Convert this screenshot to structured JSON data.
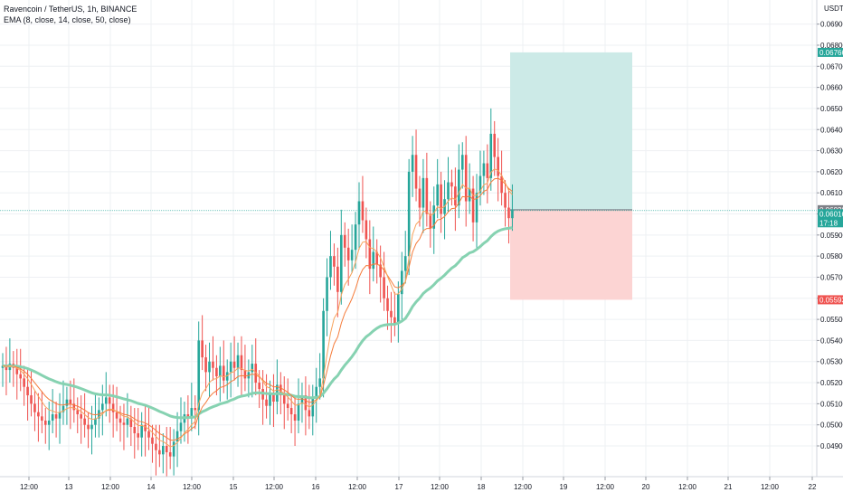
{
  "header": {
    "title": "Ravencoin / TetherUS, 1h, BINANCE",
    "indicator": "EMA (8, close, 14, close, 50, close)"
  },
  "currency": "USDT",
  "colors": {
    "up": "#26a69a",
    "down": "#ef5350",
    "ema_fast": "#f7a35c",
    "ema_mid": "#f57c3b",
    "ema_slow": "#86d2b1",
    "target_zone": "#cceae7",
    "stop_zone": "#fcd4d3",
    "grid": "#eef0f3",
    "target_tag": "#26a69a",
    "stop_tag": "#ef5350",
    "entry_tag": "#7e8087",
    "price_tag": "#26a69a"
  },
  "tags": {
    "target": "0.06766",
    "entry": "0.06020",
    "last": "0.06016",
    "countdown": "17:18",
    "stop": "0.05593"
  },
  "chart_data": {
    "type": "candlestick",
    "title": "Ravencoin / TetherUS, 1h, BINANCE",
    "ylim": [
      0.0484,
      0.0692
    ],
    "y_ticks": [
      "0.06900",
      "0.06800",
      "0.06700",
      "0.06600",
      "0.06500",
      "0.06400",
      "0.06300",
      "0.06200",
      "0.06100",
      "0.06000",
      "0.05900",
      "0.05800",
      "0.05700",
      "0.05600",
      "0.05500",
      "0.05400",
      "0.05300",
      "0.05200",
      "0.05100",
      "0.05000",
      "0.04900"
    ],
    "x_ticks": [
      "12:00",
      "13",
      "12:00",
      "14",
      "12:00",
      "15",
      "12:00",
      "16",
      "12:00",
      "17",
      "12:00",
      "18",
      "12:00",
      "19",
      "12:00",
      "20",
      "12:00",
      "21",
      "12:00",
      "22"
    ],
    "grid": true,
    "series": [
      {
        "name": "price",
        "close": [
          0.0528,
          0.0526,
          0.0529,
          0.0527,
          0.0524,
          0.0522,
          0.0518,
          0.0514,
          0.051,
          0.0506,
          0.0504,
          0.0502,
          0.05,
          0.0502,
          0.0505,
          0.0503,
          0.0506,
          0.0509,
          0.0512,
          0.051,
          0.0507,
          0.0505,
          0.0503,
          0.05,
          0.0498,
          0.05,
          0.0503,
          0.0507,
          0.051,
          0.0513,
          0.051,
          0.0506,
          0.0503,
          0.0501,
          0.05,
          0.0503,
          0.0499,
          0.0496,
          0.0494,
          0.05,
          0.0497,
          0.0494,
          0.0491,
          0.0488,
          0.0486,
          0.049,
          0.0487,
          0.0485,
          0.0492,
          0.0497,
          0.0501,
          0.0505,
          0.0503,
          0.0508,
          0.0507,
          0.054,
          0.0532,
          0.0525,
          0.053,
          0.0527,
          0.0523,
          0.0528,
          0.0521,
          0.0525,
          0.053,
          0.0527,
          0.0533,
          0.0526,
          0.0522,
          0.0525,
          0.0529,
          0.052,
          0.0517,
          0.0512,
          0.0509,
          0.0515,
          0.0511,
          0.0519,
          0.0514,
          0.051,
          0.0508,
          0.0505,
          0.0502,
          0.051,
          0.0514,
          0.0507,
          0.0504,
          0.0513,
          0.0518,
          0.0522,
          0.0554,
          0.057,
          0.058,
          0.0575,
          0.0563,
          0.059,
          0.0584,
          0.0578,
          0.0583,
          0.0595,
          0.0606,
          0.0597,
          0.0588,
          0.0574,
          0.0582,
          0.0576,
          0.057,
          0.056,
          0.0554,
          0.0551,
          0.0548,
          0.0562,
          0.0573,
          0.058,
          0.062,
          0.0628,
          0.0612,
          0.0603,
          0.0617,
          0.06,
          0.0593,
          0.0604,
          0.0614,
          0.06,
          0.0607,
          0.0615,
          0.0613,
          0.0604,
          0.0621,
          0.0628,
          0.0606,
          0.0612,
          0.0596,
          0.061,
          0.0618,
          0.0624,
          0.0617,
          0.0638,
          0.0627,
          0.0618,
          0.061,
          0.0603,
          0.0598,
          0.0602
        ],
        "open": [
          0.0527,
          0.0528,
          0.0526,
          0.0529,
          0.0527,
          0.0524,
          0.0522,
          0.0518,
          0.0514,
          0.051,
          0.0506,
          0.0504,
          0.0502,
          0.05,
          0.0502,
          0.0505,
          0.0503,
          0.0506,
          0.0509,
          0.0512,
          0.051,
          0.0507,
          0.0505,
          0.0503,
          0.05,
          0.0498,
          0.05,
          0.0503,
          0.0507,
          0.051,
          0.0513,
          0.051,
          0.0506,
          0.0503,
          0.0501,
          0.05,
          0.0503,
          0.0499,
          0.0496,
          0.0494,
          0.05,
          0.0497,
          0.0494,
          0.0491,
          0.0488,
          0.0486,
          0.049,
          0.0487,
          0.0485,
          0.0492,
          0.0497,
          0.0501,
          0.0505,
          0.0503,
          0.0508,
          0.0507,
          0.054,
          0.0532,
          0.0525,
          0.053,
          0.0527,
          0.0523,
          0.0528,
          0.0521,
          0.0525,
          0.053,
          0.0527,
          0.0533,
          0.0526,
          0.0522,
          0.0525,
          0.0529,
          0.052,
          0.0517,
          0.0512,
          0.0509,
          0.0515,
          0.0511,
          0.0519,
          0.0514,
          0.051,
          0.0508,
          0.0505,
          0.0502,
          0.051,
          0.0514,
          0.0507,
          0.0504,
          0.0513,
          0.0518,
          0.0522,
          0.0554,
          0.057,
          0.058,
          0.0575,
          0.0563,
          0.059,
          0.0584,
          0.0578,
          0.0583,
          0.0595,
          0.0606,
          0.0597,
          0.0588,
          0.0574,
          0.0582,
          0.0576,
          0.057,
          0.056,
          0.0554,
          0.0551,
          0.0548,
          0.0562,
          0.0573,
          0.058,
          0.062,
          0.0628,
          0.0612,
          0.0603,
          0.0617,
          0.06,
          0.0593,
          0.0604,
          0.0614,
          0.06,
          0.0607,
          0.0615,
          0.0613,
          0.0604,
          0.0621,
          0.0628,
          0.0606,
          0.0612,
          0.0596,
          0.061,
          0.0618,
          0.0624,
          0.0617,
          0.0638,
          0.0627,
          0.0618,
          0.061,
          0.0603,
          0.0598
        ]
      }
    ],
    "position": {
      "entry": 0.0602,
      "target": 0.06766,
      "stop": 0.05593
    }
  }
}
